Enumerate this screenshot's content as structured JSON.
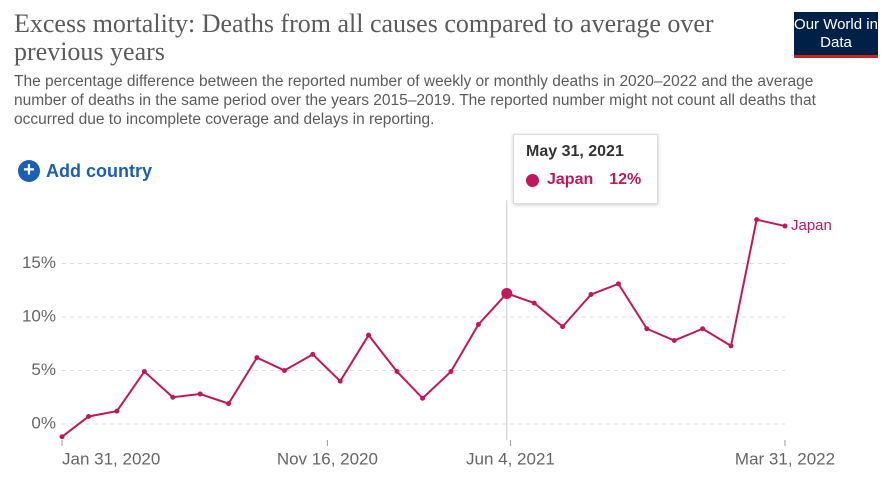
{
  "chart_data": {
    "type": "line",
    "title": "Excess mortality: Deaths from all causes compared to average over previous years",
    "subtitle": "The percentage difference between the reported number of weekly or monthly deaths in 2020–2022 and the average number of deaths in the same period over the years 2015–2019. The reported number might not count all deaths that occurred due to incomplete coverage and delays in reporting.",
    "logo": "Our World in Data",
    "button": "Add country",
    "x": [
      "2020-01-31",
      "2020-02-29",
      "2020-03-31",
      "2020-04-30",
      "2020-05-31",
      "2020-06-30",
      "2020-07-31",
      "2020-08-31",
      "2020-09-30",
      "2020-10-31",
      "2020-11-30",
      "2020-12-31",
      "2021-01-31",
      "2021-02-28",
      "2021-03-31",
      "2021-04-30",
      "2021-05-31",
      "2021-06-30",
      "2021-07-31",
      "2021-08-31",
      "2021-09-30",
      "2021-10-31",
      "2021-11-30",
      "2021-12-31",
      "2022-01-31",
      "2022-02-28",
      "2022-03-31"
    ],
    "series": [
      {
        "name": "Japan",
        "color": "#c2185b",
        "values": [
          -1.2,
          0.7,
          1.2,
          4.9,
          2.5,
          2.8,
          1.9,
          6.2,
          5.0,
          6.5,
          4.0,
          8.3,
          4.9,
          2.4,
          4.9,
          9.3,
          12.2,
          11.3,
          9.1,
          12.1,
          13.1,
          8.9,
          7.8,
          8.9,
          7.3,
          19.1,
          18.5
        ]
      }
    ],
    "xlim": [
      "2020-01-31",
      "2022-03-31"
    ],
    "xticks": [
      {
        "value": "2020-01-31",
        "label": "Jan 31, 2020"
      },
      {
        "value": "2020-11-16",
        "label": "Nov 16, 2020"
      },
      {
        "value": "2021-06-04",
        "label": "Jun 4, 2021"
      },
      {
        "value": "2022-03-31",
        "label": "Mar 31, 2022"
      }
    ],
    "ylim": [
      -1.5,
      20
    ],
    "yticks": [
      {
        "value": 0,
        "label": "0%"
      },
      {
        "value": 5,
        "label": "5%"
      },
      {
        "value": 10,
        "label": "10%"
      },
      {
        "value": 15,
        "label": "15%"
      }
    ],
    "grid": true,
    "tooltip": {
      "x": {
        "value": "2021-05-31",
        "label": "May 31, 2021"
      },
      "value": 12,
      "label": "12%"
    }
  }
}
